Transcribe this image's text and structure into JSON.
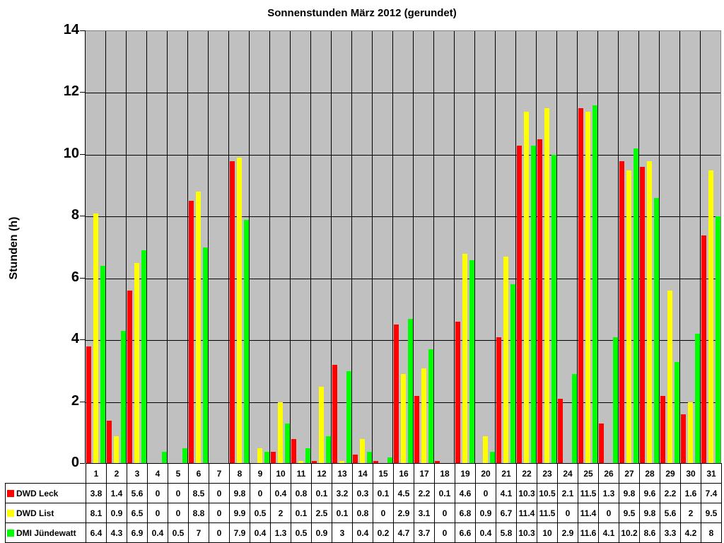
{
  "chart_data": {
    "type": "bar",
    "title": "Sonnenstunden März 2012 (gerundet)",
    "xlabel": "",
    "ylabel": "Stunden (h)",
    "ylim": [
      0,
      14
    ],
    "yticks": [
      0,
      2,
      4,
      6,
      8,
      10,
      12,
      14
    ],
    "grid": true,
    "legend_position": "data-table-below",
    "categories": [
      "1",
      "2",
      "3",
      "4",
      "5",
      "6",
      "7",
      "8",
      "9",
      "10",
      "11",
      "12",
      "13",
      "14",
      "15",
      "16",
      "17",
      "18",
      "19",
      "20",
      "21",
      "22",
      "23",
      "24",
      "25",
      "26",
      "27",
      "28",
      "29",
      "30",
      "31"
    ],
    "series": [
      {
        "name": "DWD Leck",
        "color": "#ff0000",
        "values": [
          3.8,
          1.4,
          5.6,
          0,
          0,
          8.5,
          0,
          9.8,
          0,
          0.4,
          0.8,
          0.1,
          3.2,
          0.3,
          0.1,
          4.5,
          2.2,
          0.1,
          4.6,
          0,
          4.1,
          10.3,
          10.5,
          2.1,
          11.5,
          1.3,
          9.8,
          9.6,
          2.2,
          1.6,
          7.4
        ]
      },
      {
        "name": "DWD List",
        "color": "#ffff00",
        "values": [
          8.1,
          0.9,
          6.5,
          0,
          0,
          8.8,
          0,
          9.9,
          0.5,
          2,
          0.1,
          2.5,
          0.1,
          0.8,
          0,
          2.9,
          3.1,
          0,
          6.8,
          0.9,
          6.7,
          11.4,
          11.5,
          0,
          11.4,
          0,
          9.5,
          9.8,
          5.6,
          2,
          9.5
        ]
      },
      {
        "name": "DMI Jündewatt",
        "color": "#00ff00",
        "values": [
          6.4,
          4.3,
          6.9,
          0.4,
          0.5,
          7,
          0,
          7.9,
          0.4,
          1.3,
          0.5,
          0.9,
          3,
          0.4,
          0.2,
          4.7,
          3.7,
          0,
          6.6,
          0.4,
          5.8,
          10.3,
          10,
          2.9,
          11.6,
          4.1,
          10.2,
          8.6,
          3.3,
          4.2,
          8
        ]
      }
    ]
  }
}
